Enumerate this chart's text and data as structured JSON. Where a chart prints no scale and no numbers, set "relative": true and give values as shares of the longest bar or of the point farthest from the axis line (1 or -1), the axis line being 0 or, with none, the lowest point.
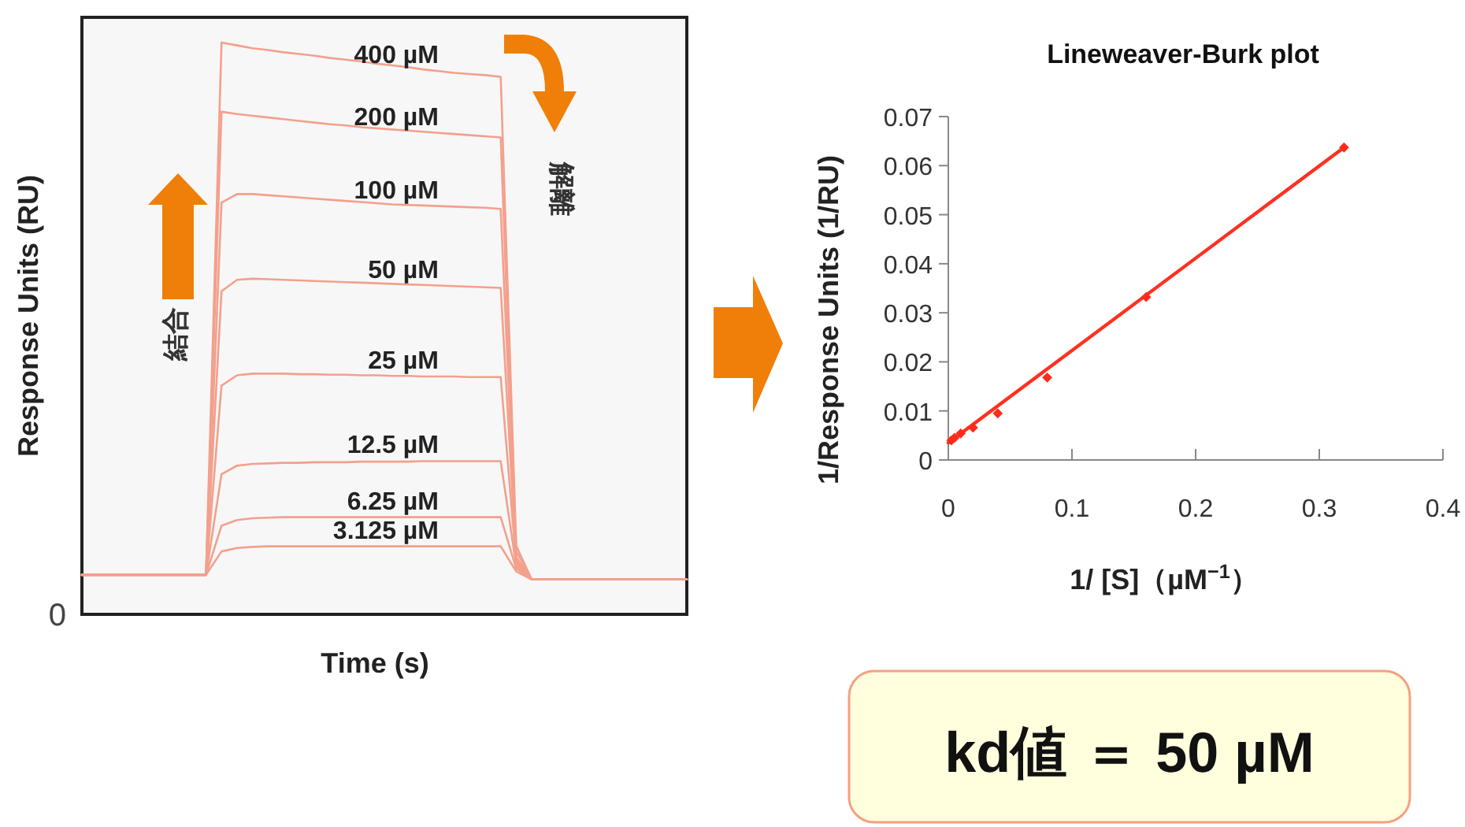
{
  "chart_data": [
    {
      "type": "line",
      "relative": true,
      "xlabel": "Time (s)",
      "ylabel": "Response Units (RU)",
      "categories": [
        null,
        null,
        null,
        null,
        null,
        null,
        null,
        null,
        null,
        null,
        null,
        null,
        null,
        null,
        null,
        null,
        null,
        null,
        null,
        null,
        null,
        null,
        null,
        null,
        null,
        null,
        null,
        null,
        null,
        null,
        null,
        null,
        null,
        null,
        null,
        null,
        null,
        null,
        null,
        null
      ],
      "series": [
        {
          "name": "400 µM",
          "color": "#f3a08c",
          "values": [
            0.069,
            0.069,
            0.069,
            0.069,
            0.069,
            0.069,
            0.069,
            0.069,
            0.069,
            1.0,
            0.995,
            0.99,
            0.987,
            0.983,
            0.98,
            0.977,
            0.973,
            0.97,
            0.967,
            0.963,
            0.96,
            0.957,
            0.953,
            0.95,
            0.947,
            0.945,
            0.943,
            0.94,
            0.12,
            0.061,
            0.061,
            0.061,
            0.061,
            0.061,
            0.061,
            0.061,
            0.061,
            0.061,
            0.061,
            0.061
          ]
        },
        {
          "name": "200 µM",
          "color": "#f3a08c",
          "values": [
            0.069,
            0.069,
            0.069,
            0.069,
            0.069,
            0.069,
            0.069,
            0.069,
            0.069,
            0.879,
            0.875,
            0.872,
            0.869,
            0.866,
            0.863,
            0.86,
            0.857,
            0.855,
            0.852,
            0.85,
            0.848,
            0.846,
            0.844,
            0.842,
            0.84,
            0.838,
            0.836,
            0.834,
            0.11,
            0.061,
            0.061,
            0.061,
            0.061,
            0.061,
            0.061,
            0.061,
            0.061,
            0.061,
            0.061,
            0.061
          ]
        },
        {
          "name": "100 µM",
          "color": "#f3a08c",
          "values": [
            0.069,
            0.069,
            0.069,
            0.069,
            0.069,
            0.069,
            0.069,
            0.069,
            0.069,
            0.72,
            0.735,
            0.735,
            0.733,
            0.731,
            0.729,
            0.727,
            0.725,
            0.723,
            0.721,
            0.719,
            0.717,
            0.716,
            0.715,
            0.714,
            0.713,
            0.712,
            0.711,
            0.709,
            0.1,
            0.061,
            0.061,
            0.061,
            0.061,
            0.061,
            0.061,
            0.061,
            0.061,
            0.061,
            0.061,
            0.061
          ]
        },
        {
          "name": "50 µM",
          "color": "#f3a08c",
          "values": [
            0.069,
            0.069,
            0.069,
            0.069,
            0.069,
            0.069,
            0.069,
            0.069,
            0.069,
            0.565,
            0.585,
            0.587,
            0.586,
            0.585,
            0.584,
            0.583,
            0.582,
            0.581,
            0.58,
            0.579,
            0.578,
            0.577,
            0.576,
            0.575,
            0.574,
            0.573,
            0.572,
            0.571,
            0.095,
            0.061,
            0.061,
            0.061,
            0.061,
            0.061,
            0.061,
            0.061,
            0.061,
            0.061,
            0.061,
            0.061
          ]
        },
        {
          "name": "25 µM",
          "color": "#f3a08c",
          "values": [
            0.069,
            0.069,
            0.069,
            0.069,
            0.069,
            0.069,
            0.069,
            0.069,
            0.069,
            0.4,
            0.418,
            0.421,
            0.421,
            0.421,
            0.42,
            0.42,
            0.419,
            0.419,
            0.418,
            0.418,
            0.417,
            0.417,
            0.416,
            0.416,
            0.416,
            0.415,
            0.415,
            0.415,
            0.09,
            0.061,
            0.061,
            0.061,
            0.061,
            0.061,
            0.061,
            0.061,
            0.061,
            0.061,
            0.061,
            0.061
          ]
        },
        {
          "name": "12.5 µM",
          "color": "#f3a08c",
          "values": [
            0.069,
            0.069,
            0.069,
            0.069,
            0.069,
            0.069,
            0.069,
            0.069,
            0.069,
            0.245,
            0.26,
            0.263,
            0.264,
            0.265,
            0.265,
            0.266,
            0.266,
            0.266,
            0.267,
            0.267,
            0.267,
            0.267,
            0.268,
            0.268,
            0.268,
            0.268,
            0.268,
            0.268,
            0.085,
            0.061,
            0.061,
            0.061,
            0.061,
            0.061,
            0.061,
            0.061,
            0.061,
            0.061,
            0.061,
            0.061
          ]
        },
        {
          "name": "6.25 µM",
          "color": "#f3a08c",
          "values": [
            0.069,
            0.069,
            0.069,
            0.069,
            0.069,
            0.069,
            0.069,
            0.069,
            0.069,
            0.155,
            0.165,
            0.168,
            0.169,
            0.17,
            0.17,
            0.17,
            0.17,
            0.17,
            0.17,
            0.17,
            0.17,
            0.17,
            0.17,
            0.17,
            0.17,
            0.17,
            0.17,
            0.17,
            0.08,
            0.061,
            0.061,
            0.061,
            0.061,
            0.061,
            0.061,
            0.061,
            0.061,
            0.061,
            0.061,
            0.061
          ]
        },
        {
          "name": "3.125 µM",
          "color": "#f3a08c",
          "values": [
            0.069,
            0.069,
            0.069,
            0.069,
            0.069,
            0.069,
            0.069,
            0.069,
            0.069,
            0.11,
            0.116,
            0.118,
            0.119,
            0.119,
            0.119,
            0.119,
            0.119,
            0.119,
            0.119,
            0.119,
            0.119,
            0.119,
            0.119,
            0.119,
            0.119,
            0.119,
            0.119,
            0.119,
            0.075,
            0.061,
            0.061,
            0.061,
            0.061,
            0.061,
            0.061,
            0.061,
            0.061,
            0.061,
            0.061,
            0.061
          ]
        }
      ],
      "annotations": [
        "結合",
        "解離",
        "0"
      ]
    },
    {
      "type": "scatter",
      "title": "Lineweaver-Burk plot",
      "xlabel": "1/ [S]（µM$^{−1}$）",
      "ylabel": "1/Response Units (1/RU)",
      "xlim": [
        0,
        0.4
      ],
      "ylim": [
        0,
        0.07
      ],
      "xticks": [
        0,
        0.1,
        0.2,
        0.3,
        0.4
      ],
      "yticks": [
        0,
        0.01,
        0.02,
        0.03,
        0.04,
        0.05,
        0.06,
        0.07
      ],
      "series": [
        {
          "marker": "diamond",
          "color": "#ff2a1a",
          "x": [
            0.0025,
            0.005,
            0.01,
            0.02,
            0.04,
            0.08,
            0.16,
            0.32
          ],
          "values": [
            0.004,
            0.0045,
            0.0054,
            0.0066,
            0.0095,
            0.0168,
            0.0332,
            0.0637
          ]
        },
        {
          "type": "line",
          "color": "#ff3020",
          "x": [
            0,
            0.32
          ],
          "values": [
            0.0035,
            0.0637
          ]
        }
      ],
      "annotations": [
        "kd値 ＝ 50 µM"
      ]
    }
  ]
}
